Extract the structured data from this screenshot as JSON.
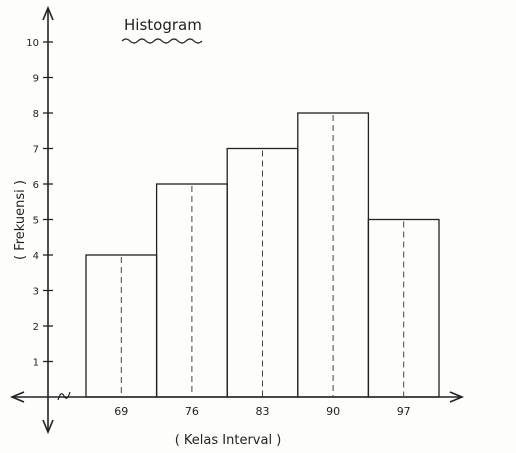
{
  "chart_data": {
    "type": "bar",
    "title": "Histogram",
    "xlabel": "( Kelas Interval )",
    "ylabel": "( Frekuensi )",
    "categories": [
      "69",
      "76",
      "83",
      "90",
      "97"
    ],
    "values": [
      4,
      6,
      7,
      8,
      5
    ],
    "yticks": [
      "1",
      "2",
      "3",
      "4",
      "5",
      "6",
      "7",
      "8",
      "9",
      "10"
    ],
    "ylim": [
      0,
      10
    ],
    "grid": false,
    "legend": "none",
    "colors": {
      "ink": "#222222",
      "paper": "#fdfdfb"
    }
  }
}
